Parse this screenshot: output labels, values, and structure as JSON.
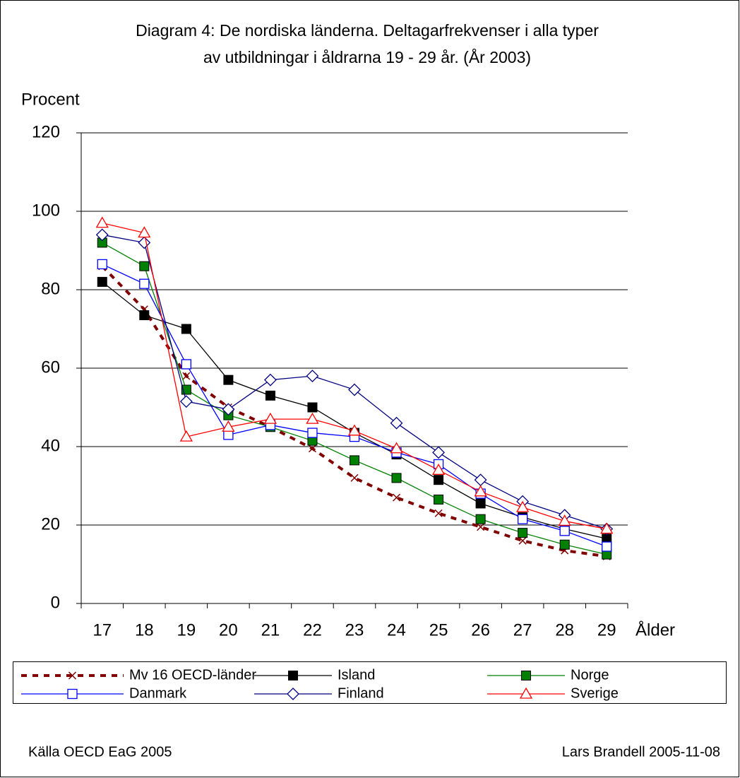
{
  "chart_data": {
    "type": "line",
    "title": [
      "Diagram 4: De nordiska länderna. Deltagarfrekvenser i alla typer",
      "av utbildningar i åldrarna 19 - 29 år.  (År 2003)"
    ],
    "y_label": "Procent",
    "x_label": "Ålder",
    "categories": [
      "17",
      "18",
      "19",
      "20",
      "21",
      "22",
      "23",
      "24",
      "25",
      "26",
      "27",
      "28",
      "29"
    ],
    "ylim": [
      0,
      120
    ],
    "yticks": [
      0,
      20,
      40,
      60,
      80,
      100,
      120
    ],
    "grid": true,
    "series": [
      {
        "name": "Mv 16 OECD-länder",
        "color": "#800000",
        "marker": "x",
        "dash": true,
        "values": [
          86,
          75,
          58,
          50,
          45,
          39.5,
          32,
          27,
          23,
          19.5,
          16,
          13.5,
          12
        ]
      },
      {
        "name": "Island",
        "color": "#000000",
        "marker": "filled-square",
        "values": [
          82,
          73.5,
          70,
          57,
          53,
          50,
          43.5,
          38,
          31.5,
          25.5,
          22,
          19,
          16.5
        ]
      },
      {
        "name": "Norge",
        "color": "#008000",
        "marker": "filled-square",
        "values": [
          92,
          86,
          54.5,
          48,
          45,
          41.5,
          36.5,
          32,
          26.5,
          21.5,
          18,
          15,
          12.5
        ]
      },
      {
        "name": "Danmark",
        "color": "#0000ff",
        "marker": "open-square",
        "values": [
          86.5,
          81.5,
          61,
          43,
          45.5,
          43.5,
          42.5,
          38.5,
          35.5,
          28,
          21.5,
          18.5,
          14.5
        ]
      },
      {
        "name": "Finland",
        "color": "#000080",
        "marker": "diamond",
        "values": [
          94,
          92,
          51.5,
          49.5,
          57,
          58,
          54.5,
          46,
          38.5,
          31.5,
          26,
          22.5,
          19
        ]
      },
      {
        "name": "Sverige",
        "color": "#ff0000",
        "marker": "triangle",
        "values": [
          97,
          94.5,
          42.5,
          45,
          47,
          47,
          44,
          39.5,
          34,
          28.5,
          24.5,
          21,
          19
        ]
      }
    ],
    "source": "Källa OECD EaG 2005",
    "author": "Lars Brandell 2005-11-08"
  }
}
